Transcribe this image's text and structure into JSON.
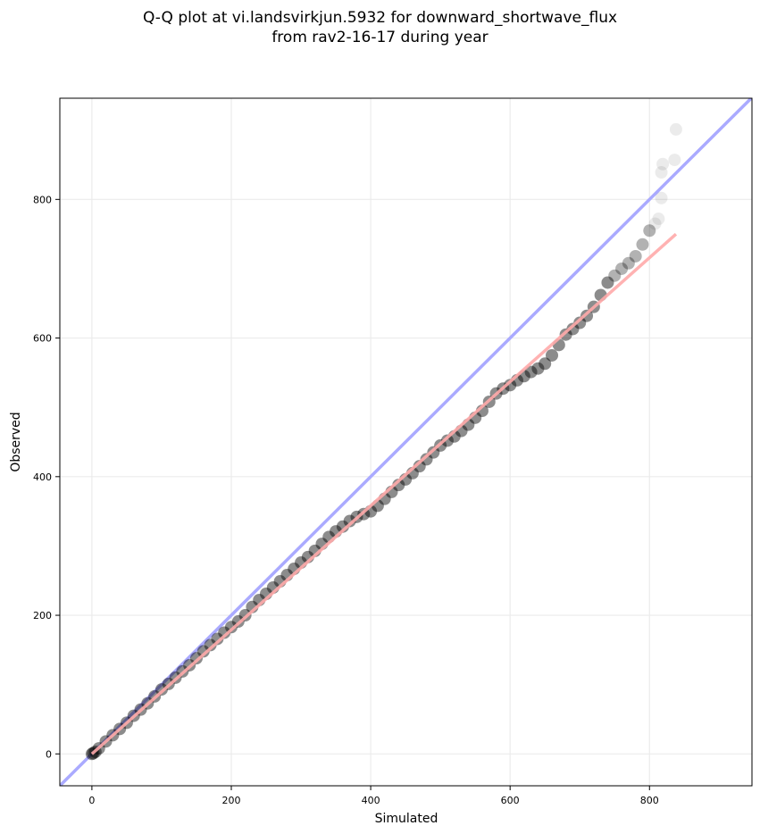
{
  "chart_data": {
    "type": "scatter",
    "title_line1": "Q-Q plot at vi.landsvirkjun.5932 for downward_shortwave_flux",
    "title_line2": "from rav2-16-17 during year",
    "xlabel": "Simulated",
    "ylabel": "Observed",
    "xlim": [
      -46,
      947
    ],
    "ylim": [
      -46,
      946
    ],
    "xticks": [
      0,
      200,
      400,
      600,
      800
    ],
    "yticks": [
      0,
      200,
      400,
      600,
      800
    ],
    "grid": true,
    "colors": {
      "points": "#000000",
      "identity_line": "#aaaaff",
      "fit_line": "#ffaaaa"
    },
    "identity_line": [
      [
        -46,
        -46
      ],
      [
        947,
        947
      ]
    ],
    "fit_line": [
      [
        0,
        0
      ],
      [
        838,
        750
      ]
    ],
    "points": [
      [
        0,
        0
      ],
      [
        2,
        1
      ],
      [
        5,
        3
      ],
      [
        10,
        8
      ],
      [
        20,
        18
      ],
      [
        30,
        27
      ],
      [
        40,
        36
      ],
      [
        50,
        45
      ],
      [
        60,
        55
      ],
      [
        70,
        64
      ],
      [
        80,
        73
      ],
      [
        90,
        83
      ],
      [
        100,
        93
      ],
      [
        110,
        101
      ],
      [
        120,
        110
      ],
      [
        130,
        119
      ],
      [
        140,
        128
      ],
      [
        150,
        138
      ],
      [
        160,
        148
      ],
      [
        170,
        157
      ],
      [
        180,
        166
      ],
      [
        190,
        175
      ],
      [
        200,
        183
      ],
      [
        210,
        191
      ],
      [
        220,
        200
      ],
      [
        230,
        212
      ],
      [
        240,
        222
      ],
      [
        250,
        231
      ],
      [
        260,
        240
      ],
      [
        270,
        249
      ],
      [
        280,
        258
      ],
      [
        290,
        267
      ],
      [
        300,
        276
      ],
      [
        310,
        284
      ],
      [
        320,
        293
      ],
      [
        330,
        303
      ],
      [
        340,
        313
      ],
      [
        350,
        321
      ],
      [
        360,
        328
      ],
      [
        370,
        336
      ],
      [
        380,
        342
      ],
      [
        390,
        346
      ],
      [
        400,
        350
      ],
      [
        410,
        358
      ],
      [
        420,
        368
      ],
      [
        430,
        378
      ],
      [
        440,
        388
      ],
      [
        450,
        396
      ],
      [
        460,
        405
      ],
      [
        470,
        415
      ],
      [
        480,
        425
      ],
      [
        490,
        435
      ],
      [
        500,
        445
      ],
      [
        510,
        452
      ],
      [
        520,
        458
      ],
      [
        530,
        466
      ],
      [
        540,
        475
      ],
      [
        550,
        485
      ],
      [
        560,
        495
      ],
      [
        570,
        508
      ],
      [
        580,
        520
      ],
      [
        590,
        527
      ],
      [
        600,
        532
      ],
      [
        610,
        539
      ],
      [
        620,
        545
      ],
      [
        630,
        551
      ],
      [
        640,
        556
      ],
      [
        650,
        563
      ],
      [
        660,
        575
      ],
      [
        670,
        590
      ],
      [
        680,
        605
      ],
      [
        690,
        613
      ],
      [
        700,
        622
      ],
      [
        710,
        632
      ],
      [
        720,
        645
      ],
      [
        730,
        662
      ],
      [
        740,
        680
      ],
      [
        750,
        690
      ],
      [
        760,
        700
      ],
      [
        770,
        708
      ],
      [
        780,
        718
      ],
      [
        790,
        735
      ],
      [
        800,
        755
      ],
      [
        808,
        765
      ],
      [
        813,
        772
      ],
      [
        817,
        802
      ],
      [
        817,
        839
      ],
      [
        819,
        851
      ],
      [
        836,
        857
      ],
      [
        838,
        901
      ]
    ]
  }
}
